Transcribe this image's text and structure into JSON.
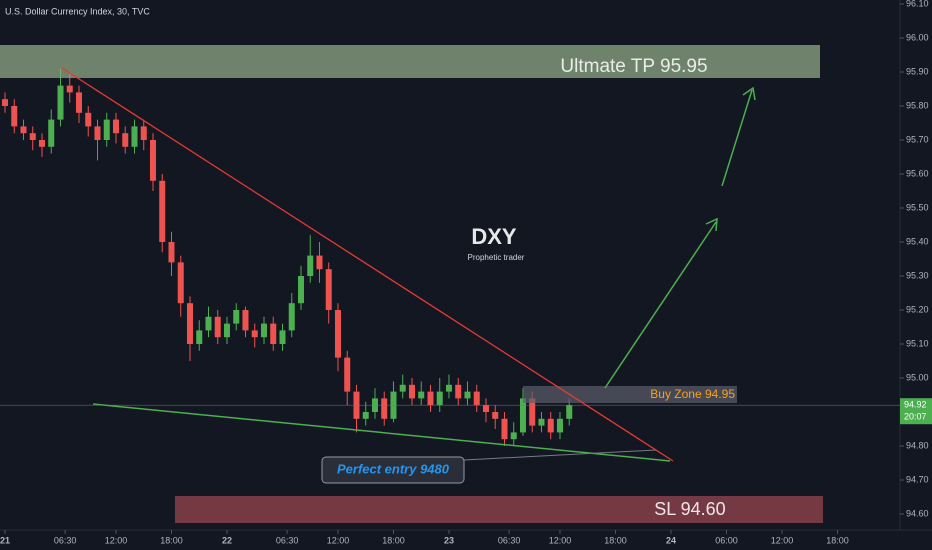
{
  "chart_data": {
    "type": "candlestick",
    "title": "U.S. Dollar Currency Index, 30, TVC",
    "annotations": {
      "symbol": "DXY",
      "author": "Prophetic trader",
      "target": "Ultmate TP 95.95",
      "buy_zone": "Buy Zone 94.95",
      "entry": "Perfect entry 9480",
      "stop": "SL 94.60",
      "countdown": "20:07"
    },
    "last_price": {
      "value": 94.92,
      "label": "94.92"
    },
    "up_color": "#4caf50",
    "down_color": "#ef5350",
    "x": [
      0,
      1,
      2,
      3,
      4,
      5,
      6,
      7,
      8,
      9,
      10,
      11,
      12,
      13,
      14,
      15,
      16,
      17,
      18,
      19,
      20,
      21,
      22,
      23,
      24,
      25,
      26,
      27,
      28,
      29,
      30,
      31,
      32,
      33,
      34,
      35,
      36,
      37,
      38,
      39,
      40,
      41,
      42,
      43,
      44,
      45,
      46,
      47,
      48,
      49,
      50,
      51,
      52,
      53,
      54,
      55,
      56,
      57,
      58,
      59,
      60,
      61
    ],
    "open": [
      95.82,
      95.8,
      95.74,
      95.72,
      95.7,
      95.68,
      95.76,
      95.86,
      95.84,
      95.78,
      95.74,
      95.7,
      95.76,
      95.72,
      95.68,
      95.74,
      95.7,
      95.58,
      95.4,
      95.34,
      95.22,
      95.1,
      95.14,
      95.18,
      95.12,
      95.16,
      95.2,
      95.14,
      95.12,
      95.16,
      95.1,
      95.14,
      95.22,
      95.3,
      95.36,
      95.32,
      95.2,
      95.06,
      94.96,
      94.88,
      94.9,
      94.94,
      94.88,
      94.96,
      94.98,
      94.94,
      94.96,
      94.92,
      94.96,
      94.98,
      94.94,
      94.96,
      94.92,
      94.9,
      94.88,
      94.82,
      94.84,
      94.94,
      94.86,
      94.88,
      94.84,
      94.88
    ],
    "high": [
      95.84,
      95.82,
      95.76,
      95.74,
      95.72,
      95.79,
      95.91,
      95.9,
      95.86,
      95.8,
      95.76,
      95.78,
      95.78,
      95.74,
      95.76,
      95.76,
      95.72,
      95.6,
      95.43,
      95.36,
      95.24,
      95.17,
      95.21,
      95.2,
      95.18,
      95.22,
      95.21,
      95.16,
      95.18,
      95.18,
      95.16,
      95.25,
      95.33,
      95.42,
      95.4,
      95.34,
      95.22,
      95.08,
      94.98,
      94.93,
      94.97,
      94.96,
      94.99,
      95.01,
      95.0,
      94.99,
      94.98,
      95.0,
      95.01,
      95.0,
      94.99,
      94.98,
      94.94,
      94.92,
      94.9,
      94.87,
      94.97,
      94.96,
      94.9,
      94.9,
      94.9,
      94.94
    ],
    "low": [
      95.78,
      95.72,
      95.7,
      95.67,
      95.65,
      95.66,
      95.74,
      95.81,
      95.75,
      95.71,
      95.64,
      95.68,
      95.69,
      95.66,
      95.66,
      95.67,
      95.55,
      95.37,
      95.3,
      95.18,
      95.05,
      95.08,
      95.12,
      95.1,
      95.1,
      95.14,
      95.12,
      95.09,
      95.1,
      95.08,
      95.08,
      95.12,
      95.2,
      95.28,
      95.28,
      95.16,
      95.02,
      94.92,
      94.84,
      94.86,
      94.88,
      94.86,
      94.87,
      94.94,
      94.92,
      94.92,
      94.9,
      94.9,
      94.94,
      94.92,
      94.92,
      94.9,
      94.87,
      94.85,
      94.8,
      94.8,
      94.83,
      94.84,
      94.84,
      94.82,
      94.82,
      94.86
    ],
    "close": [
      95.8,
      95.74,
      95.72,
      95.7,
      95.68,
      95.76,
      95.86,
      95.84,
      95.78,
      95.74,
      95.7,
      95.76,
      95.72,
      95.68,
      95.74,
      95.7,
      95.58,
      95.4,
      95.34,
      95.22,
      95.1,
      95.14,
      95.18,
      95.12,
      95.16,
      95.2,
      95.14,
      95.12,
      95.16,
      95.1,
      95.14,
      95.22,
      95.3,
      95.36,
      95.32,
      95.2,
      95.06,
      94.96,
      94.88,
      94.9,
      94.94,
      94.88,
      94.96,
      94.98,
      94.94,
      94.96,
      94.92,
      94.96,
      94.98,
      94.94,
      94.96,
      94.92,
      94.9,
      94.88,
      94.82,
      94.84,
      94.94,
      94.86,
      94.88,
      94.84,
      94.88,
      94.92
    ],
    "xlim": [
      -0.54,
      96.76
    ],
    "xticks": [
      {
        "value": 0,
        "label": "21"
      },
      {
        "value": 6.5,
        "label": "06:30"
      },
      {
        "value": 12,
        "label": "12:00"
      },
      {
        "value": 18,
        "label": "18:00"
      },
      {
        "value": 24,
        "label": "22"
      },
      {
        "value": 30.5,
        "label": "06:30"
      },
      {
        "value": 36,
        "label": "12:00"
      },
      {
        "value": 42,
        "label": "18:00"
      },
      {
        "value": 48,
        "label": "23"
      },
      {
        "value": 54.5,
        "label": "06:30"
      },
      {
        "value": 60,
        "label": "12:00"
      },
      {
        "value": 66,
        "label": "18:00"
      },
      {
        "value": 72,
        "label": "24"
      },
      {
        "value": 78,
        "label": "06:00"
      },
      {
        "value": 84,
        "label": "12:00"
      },
      {
        "value": 90,
        "label": "18:00"
      }
    ],
    "ylim": [
      94.6,
      96.1
    ],
    "yticks": [
      {
        "value": 94.6,
        "label": "94.60"
      },
      {
        "value": 94.7,
        "label": "94.70"
      },
      {
        "value": 94.8,
        "label": "94.80"
      },
      {
        "value": 94.9,
        "label": "94.90"
      },
      {
        "value": 95.0,
        "label": "95.00"
      },
      {
        "value": 95.1,
        "label": "95.10"
      },
      {
        "value": 95.2,
        "label": "95.20"
      },
      {
        "value": 95.3,
        "label": "95.30"
      },
      {
        "value": 95.4,
        "label": "95.40"
      },
      {
        "value": 95.5,
        "label": "95.50"
      },
      {
        "value": 95.6,
        "label": "95.60"
      },
      {
        "value": 95.7,
        "label": "95.70"
      },
      {
        "value": 95.8,
        "label": "95.80"
      },
      {
        "value": 95.9,
        "label": "95.90"
      },
      {
        "value": 96.0,
        "label": "96.00"
      },
      {
        "value": 96.1,
        "label": "96.10"
      }
    ]
  }
}
